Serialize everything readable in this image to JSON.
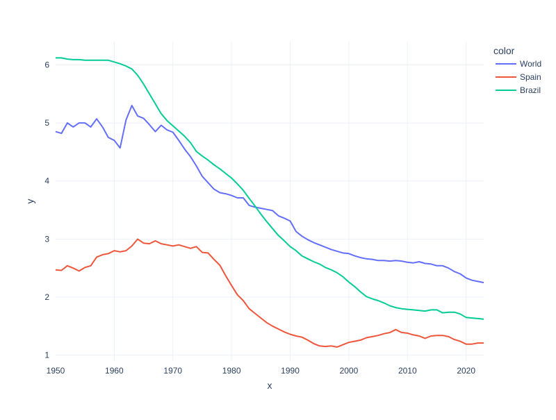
{
  "chart_data": {
    "type": "line",
    "title": "",
    "xlabel": "x",
    "ylabel": "y",
    "xlim": [
      1950,
      2023
    ],
    "ylim": [
      0.9,
      6.4
    ],
    "x_ticks": [
      1950,
      1960,
      1970,
      1980,
      1990,
      2000,
      2010,
      2020
    ],
    "y_ticks": [
      1,
      2,
      3,
      4,
      5,
      6
    ],
    "grid": true,
    "legend": {
      "title": "color",
      "placement": "right"
    },
    "x": [
      1950,
      1951,
      1952,
      1953,
      1954,
      1955,
      1956,
      1957,
      1958,
      1959,
      1960,
      1961,
      1962,
      1963,
      1964,
      1965,
      1966,
      1967,
      1968,
      1969,
      1970,
      1971,
      1972,
      1973,
      1974,
      1975,
      1976,
      1977,
      1978,
      1979,
      1980,
      1981,
      1982,
      1983,
      1984,
      1985,
      1986,
      1987,
      1988,
      1989,
      1990,
      1991,
      1992,
      1993,
      1994,
      1995,
      1996,
      1997,
      1998,
      1999,
      2000,
      2001,
      2002,
      2003,
      2004,
      2005,
      2006,
      2007,
      2008,
      2009,
      2010,
      2011,
      2012,
      2013,
      2014,
      2015,
      2016,
      2017,
      2018,
      2019,
      2020,
      2021,
      2022,
      2023
    ],
    "series": [
      {
        "name": "World",
        "color": "#636efa",
        "values": [
          4.85,
          4.82,
          5.0,
          4.93,
          5.0,
          5.0,
          4.93,
          5.07,
          4.93,
          4.75,
          4.7,
          4.57,
          5.05,
          5.3,
          5.12,
          5.08,
          4.97,
          4.85,
          4.96,
          4.88,
          4.84,
          4.7,
          4.55,
          4.42,
          4.26,
          4.08,
          3.97,
          3.86,
          3.8,
          3.78,
          3.75,
          3.71,
          3.71,
          3.58,
          3.55,
          3.53,
          3.51,
          3.49,
          3.4,
          3.36,
          3.31,
          3.13,
          3.05,
          2.99,
          2.94,
          2.9,
          2.86,
          2.82,
          2.79,
          2.76,
          2.75,
          2.71,
          2.68,
          2.66,
          2.65,
          2.63,
          2.63,
          2.62,
          2.63,
          2.62,
          2.6,
          2.59,
          2.61,
          2.58,
          2.57,
          2.54,
          2.54,
          2.5,
          2.44,
          2.4,
          2.33,
          2.29,
          2.27,
          2.25
        ]
      },
      {
        "name": "Spain",
        "color": "#ef553b",
        "values": [
          2.47,
          2.46,
          2.54,
          2.5,
          2.45,
          2.51,
          2.54,
          2.69,
          2.73,
          2.75,
          2.8,
          2.78,
          2.8,
          2.88,
          3.0,
          2.93,
          2.92,
          2.97,
          2.92,
          2.9,
          2.88,
          2.9,
          2.87,
          2.84,
          2.87,
          2.77,
          2.76,
          2.65,
          2.55,
          2.37,
          2.2,
          2.04,
          1.94,
          1.8,
          1.72,
          1.64,
          1.56,
          1.5,
          1.45,
          1.4,
          1.36,
          1.33,
          1.31,
          1.26,
          1.2,
          1.16,
          1.15,
          1.16,
          1.14,
          1.18,
          1.22,
          1.24,
          1.26,
          1.3,
          1.32,
          1.34,
          1.37,
          1.39,
          1.44,
          1.39,
          1.38,
          1.35,
          1.33,
          1.29,
          1.33,
          1.34,
          1.34,
          1.32,
          1.27,
          1.24,
          1.19,
          1.19,
          1.21,
          1.21
        ]
      },
      {
        "name": "Brazil",
        "color": "#00cc96",
        "values": [
          6.12,
          6.12,
          6.1,
          6.09,
          6.09,
          6.08,
          6.08,
          6.08,
          6.08,
          6.08,
          6.05,
          6.02,
          5.98,
          5.93,
          5.82,
          5.67,
          5.5,
          5.33,
          5.16,
          5.04,
          4.95,
          4.86,
          4.77,
          4.66,
          4.51,
          4.43,
          4.36,
          4.28,
          4.21,
          4.13,
          4.05,
          3.95,
          3.84,
          3.7,
          3.57,
          3.43,
          3.3,
          3.18,
          3.06,
          2.97,
          2.87,
          2.8,
          2.71,
          2.66,
          2.61,
          2.57,
          2.51,
          2.47,
          2.42,
          2.35,
          2.26,
          2.18,
          2.09,
          2.01,
          1.97,
          1.94,
          1.9,
          1.85,
          1.82,
          1.8,
          1.79,
          1.78,
          1.77,
          1.76,
          1.78,
          1.78,
          1.73,
          1.74,
          1.74,
          1.71,
          1.65,
          1.64,
          1.63,
          1.62
        ]
      }
    ]
  }
}
